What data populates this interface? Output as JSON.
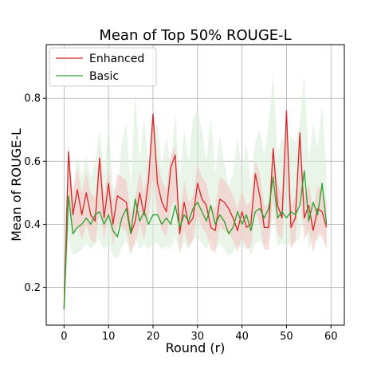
{
  "chart_data": {
    "type": "line",
    "title": "Mean of Top 50% ROUGE-L",
    "xlabel": "Round (r)",
    "ylabel": "Mean of ROUGE-L",
    "xlim": [
      -4,
      63
    ],
    "ylim": [
      0.08,
      0.97
    ],
    "xticks": [
      0,
      10,
      20,
      30,
      40,
      50,
      60
    ],
    "yticks": [
      0.2,
      0.4,
      0.6,
      0.8
    ],
    "ytick_labels": [
      "0.2",
      "0.4",
      "0.6",
      "0.8"
    ],
    "grid": true,
    "legend_position": "upper-left",
    "x": [
      0,
      1,
      2,
      3,
      4,
      5,
      6,
      7,
      8,
      9,
      10,
      11,
      12,
      13,
      14,
      15,
      16,
      17,
      18,
      19,
      20,
      21,
      22,
      23,
      24,
      25,
      26,
      27,
      28,
      29,
      30,
      31,
      32,
      33,
      34,
      35,
      36,
      37,
      38,
      39,
      40,
      41,
      42,
      43,
      44,
      45,
      46,
      47,
      48,
      49,
      50,
      51,
      52,
      53,
      54,
      55,
      56,
      57,
      58,
      59
    ],
    "series": [
      {
        "name": "Enhanced",
        "color": "#d62728",
        "band_color": "#f4c7c3",
        "values": [
          0.13,
          0.63,
          0.43,
          0.51,
          0.43,
          0.5,
          0.43,
          0.41,
          0.61,
          0.42,
          0.53,
          0.4,
          0.49,
          0.48,
          0.47,
          0.37,
          0.41,
          0.5,
          0.43,
          0.54,
          0.75,
          0.53,
          0.47,
          0.44,
          0.58,
          0.62,
          0.37,
          0.47,
          0.4,
          0.42,
          0.53,
          0.48,
          0.46,
          0.39,
          0.38,
          0.48,
          0.47,
          0.45,
          0.42,
          0.38,
          0.44,
          0.39,
          0.4,
          0.56,
          0.49,
          0.39,
          0.39,
          0.64,
          0.46,
          0.42,
          0.76,
          0.39,
          0.42,
          0.69,
          0.42,
          0.46,
          0.38,
          0.45,
          0.44,
          0.39
        ],
        "band_low": [
          0.1,
          0.52,
          0.36,
          0.4,
          0.35,
          0.4,
          0.35,
          0.34,
          0.45,
          0.35,
          0.43,
          0.33,
          0.4,
          0.39,
          0.38,
          0.31,
          0.34,
          0.4,
          0.35,
          0.43,
          0.55,
          0.43,
          0.38,
          0.36,
          0.45,
          0.48,
          0.31,
          0.38,
          0.33,
          0.35,
          0.43,
          0.39,
          0.37,
          0.32,
          0.31,
          0.39,
          0.38,
          0.37,
          0.35,
          0.31,
          0.36,
          0.32,
          0.33,
          0.44,
          0.4,
          0.32,
          0.32,
          0.49,
          0.37,
          0.35,
          0.56,
          0.32,
          0.35,
          0.51,
          0.35,
          0.38,
          0.31,
          0.37,
          0.36,
          0.32
        ],
        "band_high": [
          0.16,
          0.66,
          0.5,
          0.58,
          0.5,
          0.57,
          0.5,
          0.48,
          0.64,
          0.49,
          0.58,
          0.47,
          0.56,
          0.55,
          0.54,
          0.43,
          0.48,
          0.57,
          0.5,
          0.6,
          0.77,
          0.6,
          0.54,
          0.51,
          0.62,
          0.65,
          0.43,
          0.54,
          0.47,
          0.49,
          0.59,
          0.55,
          0.53,
          0.46,
          0.45,
          0.55,
          0.54,
          0.52,
          0.49,
          0.45,
          0.51,
          0.46,
          0.47,
          0.6,
          0.56,
          0.46,
          0.46,
          0.66,
          0.53,
          0.49,
          0.78,
          0.46,
          0.49,
          0.71,
          0.49,
          0.53,
          0.45,
          0.52,
          0.51,
          0.46
        ]
      },
      {
        "name": "Basic",
        "color": "#2ca02c",
        "band_color": "#d8eed8",
        "values": [
          0.13,
          0.49,
          0.37,
          0.39,
          0.4,
          0.42,
          0.4,
          0.43,
          0.44,
          0.4,
          0.43,
          0.38,
          0.36,
          0.42,
          0.45,
          0.37,
          0.48,
          0.41,
          0.44,
          0.4,
          0.43,
          0.43,
          0.4,
          0.42,
          0.4,
          0.46,
          0.39,
          0.43,
          0.41,
          0.45,
          0.47,
          0.44,
          0.41,
          0.46,
          0.4,
          0.43,
          0.41,
          0.37,
          0.39,
          0.44,
          0.4,
          0.43,
          0.38,
          0.44,
          0.45,
          0.42,
          0.45,
          0.55,
          0.42,
          0.44,
          0.42,
          0.44,
          0.43,
          0.46,
          0.57,
          0.41,
          0.47,
          0.43,
          0.53,
          0.4
        ],
        "band_low": [
          0.1,
          0.36,
          0.3,
          0.31,
          0.32,
          0.34,
          0.32,
          0.34,
          0.35,
          0.32,
          0.34,
          0.3,
          0.29,
          0.33,
          0.35,
          0.3,
          0.36,
          0.32,
          0.34,
          0.32,
          0.34,
          0.34,
          0.32,
          0.33,
          0.32,
          0.36,
          0.31,
          0.34,
          0.32,
          0.35,
          0.36,
          0.34,
          0.32,
          0.36,
          0.32,
          0.34,
          0.32,
          0.3,
          0.31,
          0.34,
          0.32,
          0.34,
          0.3,
          0.34,
          0.35,
          0.33,
          0.35,
          0.42,
          0.33,
          0.34,
          0.33,
          0.34,
          0.34,
          0.36,
          0.43,
          0.32,
          0.37,
          0.34,
          0.41,
          0.32
        ],
        "band_high": [
          0.16,
          0.6,
          0.5,
          0.62,
          0.55,
          0.62,
          0.55,
          0.6,
          0.7,
          0.56,
          0.72,
          0.52,
          0.5,
          0.66,
          0.72,
          0.52,
          0.82,
          0.6,
          0.74,
          0.58,
          0.7,
          0.72,
          0.58,
          0.68,
          0.58,
          0.76,
          0.54,
          0.7,
          0.6,
          0.74,
          0.76,
          0.7,
          0.6,
          0.74,
          0.56,
          0.68,
          0.6,
          0.52,
          0.56,
          0.68,
          0.56,
          0.66,
          0.52,
          0.66,
          0.7,
          0.62,
          0.72,
          0.88,
          0.62,
          0.68,
          0.62,
          0.68,
          0.66,
          0.72,
          0.88,
          0.6,
          0.72,
          0.64,
          0.78,
          0.56
        ]
      }
    ]
  }
}
